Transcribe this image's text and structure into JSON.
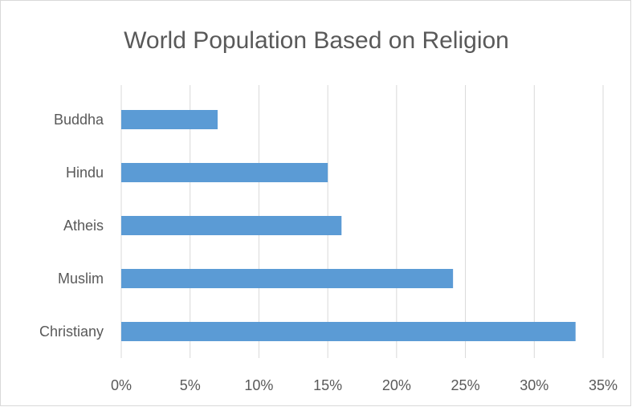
{
  "chart_data": {
    "type": "bar",
    "orientation": "horizontal",
    "title": "World Population Based on Religion",
    "categories": [
      "Buddha",
      "Hindu",
      "Atheis",
      "Muslim",
      "Christiany"
    ],
    "values": [
      7,
      15,
      16,
      24.1,
      33
    ],
    "xlabel": "",
    "ylabel": "",
    "xlim": [
      0,
      35
    ],
    "xticks": [
      0,
      5,
      10,
      15,
      20,
      25,
      30,
      35
    ],
    "xtick_labels": [
      "0%",
      "5%",
      "10%",
      "15%",
      "20%",
      "25%",
      "30%",
      "35%"
    ],
    "value_unit": "%",
    "grid": "vertical",
    "legend": "none",
    "bar_color": "#5b9bd5",
    "grid_color": "#d9d9d9",
    "text_color": "#595959"
  }
}
